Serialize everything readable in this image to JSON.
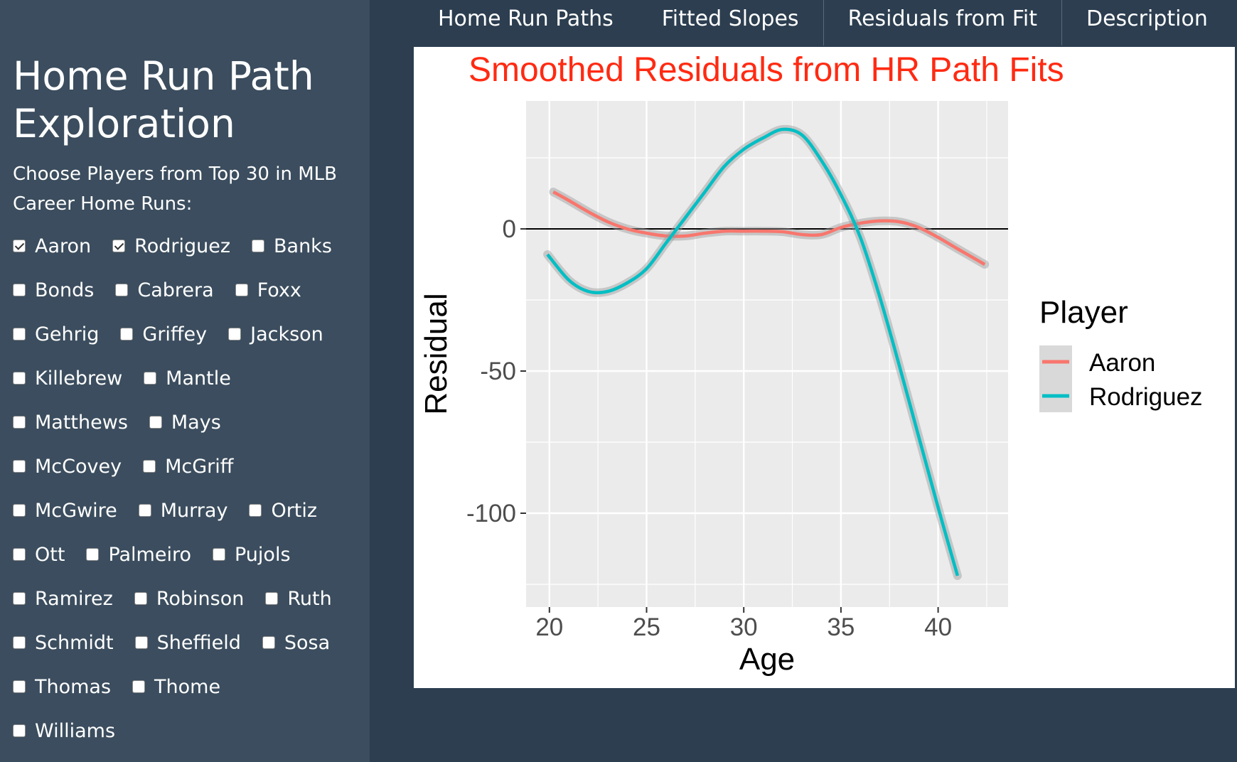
{
  "sidebar": {
    "title_line1": "Home Run Path",
    "title_line2": "Exploration",
    "prompt": "Choose Players from Top 30 in MLB Career Home Runs:",
    "players": [
      [
        {
          "label": "Aaron",
          "checked": true
        },
        {
          "label": "Rodriguez",
          "checked": true
        },
        {
          "label": "Banks",
          "checked": false
        }
      ],
      [
        {
          "label": "Bonds",
          "checked": false
        },
        {
          "label": "Cabrera",
          "checked": false
        },
        {
          "label": "Foxx",
          "checked": false
        }
      ],
      [
        {
          "label": "Gehrig",
          "checked": false
        },
        {
          "label": "Griffey",
          "checked": false
        },
        {
          "label": "Jackson",
          "checked": false
        }
      ],
      [
        {
          "label": "Killebrew",
          "checked": false
        },
        {
          "label": "Mantle",
          "checked": false
        }
      ],
      [
        {
          "label": "Matthews",
          "checked": false
        },
        {
          "label": "Mays",
          "checked": false
        }
      ],
      [
        {
          "label": "McCovey",
          "checked": false
        },
        {
          "label": "McGriff",
          "checked": false
        }
      ],
      [
        {
          "label": "McGwire",
          "checked": false
        },
        {
          "label": "Murray",
          "checked": false
        },
        {
          "label": "Ortiz",
          "checked": false
        }
      ],
      [
        {
          "label": "Ott",
          "checked": false
        },
        {
          "label": "Palmeiro",
          "checked": false
        },
        {
          "label": "Pujols",
          "checked": false
        }
      ],
      [
        {
          "label": "Ramirez",
          "checked": false
        },
        {
          "label": "Robinson",
          "checked": false
        },
        {
          "label": "Ruth",
          "checked": false
        }
      ],
      [
        {
          "label": "Schmidt",
          "checked": false
        },
        {
          "label": "Sheffield",
          "checked": false
        },
        {
          "label": "Sosa",
          "checked": false
        }
      ],
      [
        {
          "label": "Thomas",
          "checked": false
        },
        {
          "label": "Thome",
          "checked": false
        }
      ],
      [
        {
          "label": "Williams",
          "checked": false
        }
      ]
    ]
  },
  "tabs": [
    {
      "label": "Home Run Paths"
    },
    {
      "label": "Fitted Slopes"
    },
    {
      "label": "Residuals from Fit"
    },
    {
      "label": "Description"
    }
  ],
  "colors": {
    "title": "#ff2a12",
    "aaron": "#f8766d",
    "rodriguez": "#00bfc4",
    "panel_bg": "#ebebeb",
    "zero_line": "#000000"
  },
  "chart_data": {
    "type": "line",
    "title": "Smoothed Residuals from HR Path Fits",
    "xlabel": "Age",
    "ylabel": "Residual",
    "xlim": [
      18.8,
      43.6
    ],
    "ylim": [
      -133,
      45
    ],
    "x_ticks": [
      20,
      25,
      30,
      35,
      40
    ],
    "y_ticks": [
      0,
      -50,
      -100
    ],
    "reference_line_y": 0,
    "legend_title": "Player",
    "legend_position": "right",
    "grid": true,
    "series": [
      {
        "name": "Aaron",
        "color": "#f8766d",
        "x": [
          20.2,
          21,
          22,
          23,
          24,
          25,
          26,
          27,
          28,
          29,
          30,
          31,
          32,
          33,
          34,
          35,
          36,
          37,
          38,
          39,
          40,
          41,
          42.4
        ],
        "y": [
          13,
          10,
          6,
          2.5,
          0,
          -1.5,
          -2.5,
          -2.5,
          -1.5,
          -0.8,
          -0.8,
          -0.8,
          -1,
          -2,
          -2,
          0.5,
          2,
          2.8,
          2.5,
          0.5,
          -3,
          -7,
          -12.5
        ]
      },
      {
        "name": "Rodriguez",
        "color": "#00bfc4",
        "x": [
          19.9,
          21,
          22,
          23,
          24,
          25,
          26,
          27,
          28,
          29,
          30,
          31,
          32,
          33,
          34,
          35,
          36,
          37,
          38,
          39,
          40,
          41
        ],
        "y": [
          -9,
          -18,
          -22,
          -22,
          -19,
          -14,
          -5,
          4,
          13,
          22,
          28,
          32,
          35,
          33,
          24,
          12,
          -3,
          -24,
          -48,
          -73,
          -98,
          -122
        ]
      }
    ]
  }
}
